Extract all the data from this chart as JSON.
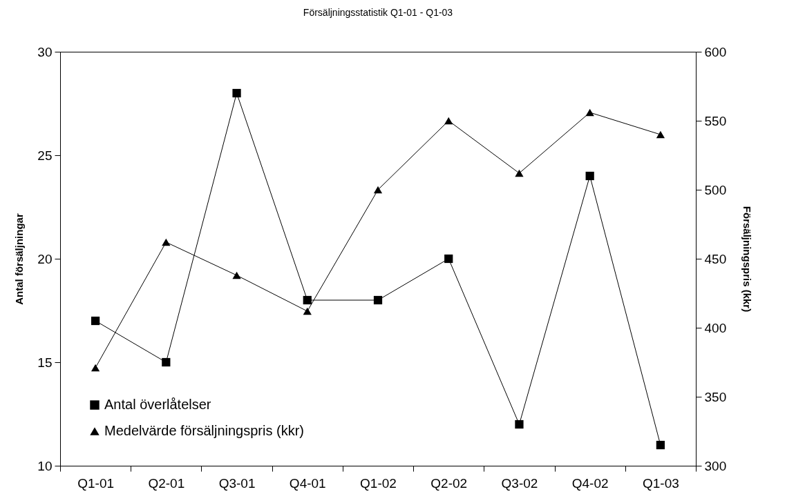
{
  "chart_data": {
    "type": "line",
    "title": "Försäljningsstatistik Q1-01 - Q1-03",
    "ylabel": "Antal försäljningar",
    "y2label": "Försäljningspris (kkr)",
    "categories": [
      "Q1-01",
      "Q2-01",
      "Q3-01",
      "Q4-01",
      "Q1-02",
      "Q2-02",
      "Q3-02",
      "Q4-02",
      "Q1-03"
    ],
    "series": [
      {
        "name": "Antal överlåtelser",
        "color": "#000000",
        "marker": "square",
        "values": [
          17,
          15,
          28,
          18,
          18,
          20,
          12,
          24,
          11
        ]
      },
      {
        "name": "Medelvärde försäljningspris (kkr)",
        "color": "#000000",
        "marker": "triangle",
        "axis": "y2",
        "values": [
          371,
          462,
          438,
          412,
          500,
          550,
          512,
          556,
          540
        ]
      }
    ],
    "ylim": [
      10,
      30
    ],
    "yticks": [
      10,
      15,
      20,
      25,
      30
    ],
    "y2lim": [
      300,
      600
    ],
    "y2ticks": [
      300,
      350,
      400,
      450,
      500,
      550,
      600
    ],
    "grid": false,
    "legend": "bottom left",
    "line_style": "solid"
  }
}
